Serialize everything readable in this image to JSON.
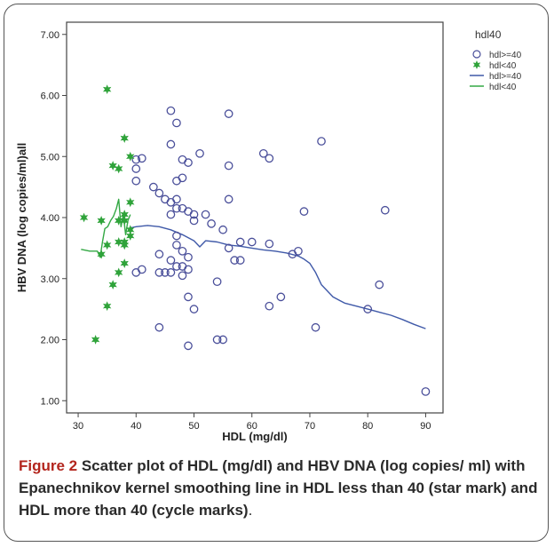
{
  "chart_data": {
    "type": "scatter",
    "xlabel": "HDL (mg/dl)",
    "ylabel": "HBV DNA (log copies/ml)all",
    "xlim": [
      28,
      93
    ],
    "ylim": [
      0.8,
      7.2
    ],
    "xticks": [
      30,
      40,
      50,
      60,
      70,
      80,
      90
    ],
    "yticks": [
      1,
      2,
      3,
      4,
      5,
      6,
      7
    ],
    "xtick_labels": [
      "30",
      "40",
      "50",
      "60",
      "70",
      "80",
      "90"
    ],
    "ytick_labels": [
      "1.00",
      "2.00",
      "3.00",
      "4.00",
      "5.00",
      "6.00",
      "7.00"
    ],
    "grid": false,
    "legend": {
      "title": "hdl40",
      "placement": "top-right outside",
      "entries": [
        "hdl>=40",
        "hdl<40",
        "hdl>=40",
        "hdl<40"
      ]
    },
    "series": [
      {
        "name": "hdl>=40",
        "kind": "points",
        "marker": "circle",
        "color": "#4a4f9a",
        "x": [
          40,
          41,
          40,
          40,
          40,
          41,
          43,
          44,
          44,
          44,
          44,
          45,
          45,
          46,
          46,
          46,
          46,
          46,
          46,
          47,
          47,
          47,
          47,
          47,
          47,
          47,
          48,
          48,
          48,
          48,
          48,
          48,
          49,
          49,
          49,
          49,
          49,
          49,
          50,
          50,
          50,
          51,
          52,
          53,
          54,
          54,
          55,
          55,
          56,
          56,
          56,
          56,
          57,
          58,
          58,
          60,
          62,
          63,
          63,
          63,
          65,
          67,
          68,
          69,
          71,
          72,
          80,
          82,
          83,
          90
        ],
        "y": [
          4.95,
          4.97,
          4.8,
          4.6,
          3.1,
          3.15,
          4.5,
          4.4,
          3.4,
          3.1,
          2.2,
          4.3,
          3.1,
          5.75,
          5.2,
          4.25,
          4.05,
          3.3,
          3.1,
          5.55,
          4.6,
          4.3,
          4.15,
          3.7,
          3.55,
          3.2,
          4.95,
          4.65,
          4.15,
          3.45,
          3.2,
          3.05,
          4.9,
          4.1,
          3.35,
          3.15,
          2.7,
          1.9,
          4.05,
          3.95,
          2.5,
          5.05,
          4.05,
          3.9,
          2.95,
          2.0,
          3.8,
          2.0,
          5.7,
          4.85,
          4.3,
          3.5,
          3.3,
          3.6,
          3.3,
          3.6,
          5.05,
          4.97,
          3.57,
          2.55,
          2.7,
          3.4,
          3.45,
          4.1,
          2.2,
          5.25,
          2.5,
          2.9,
          4.12,
          1.15
        ]
      },
      {
        "name": "hdl<40",
        "kind": "points",
        "marker": "star",
        "color": "#2fa33a",
        "x": [
          31,
          33,
          34,
          34,
          35,
          35,
          35,
          36,
          36,
          37,
          37,
          37,
          37,
          38,
          38,
          38,
          38,
          38,
          38,
          39,
          39,
          39,
          39
        ],
        "y": [
          4.0,
          2.0,
          3.95,
          3.4,
          6.1,
          3.55,
          2.55,
          4.85,
          2.9,
          4.8,
          3.95,
          3.6,
          3.1,
          5.3,
          4.05,
          3.95,
          3.6,
          3.55,
          3.25,
          5.0,
          4.25,
          3.8,
          3.7
        ]
      },
      {
        "name": "hdl>=40",
        "kind": "smooth-line",
        "color": "#3f59a8",
        "x": [
          39,
          40,
          42,
          44,
          46,
          48,
          50,
          51,
          52,
          54,
          56,
          58,
          60,
          62,
          64,
          66,
          68,
          69,
          70,
          71,
          72,
          74,
          76,
          78,
          80,
          82,
          84,
          86,
          88,
          90
        ],
        "y": [
          3.83,
          3.85,
          3.87,
          3.85,
          3.8,
          3.72,
          3.62,
          3.52,
          3.62,
          3.6,
          3.55,
          3.53,
          3.5,
          3.47,
          3.45,
          3.42,
          3.37,
          3.32,
          3.25,
          3.1,
          2.9,
          2.7,
          2.6,
          2.55,
          2.5,
          2.45,
          2.4,
          2.33,
          2.25,
          2.18
        ]
      },
      {
        "name": "hdl<40",
        "kind": "smooth-line",
        "color": "#33a844",
        "x": [
          30.5,
          32,
          33.3,
          33.8,
          34.2,
          34.6,
          35.1,
          35.6,
          36.1,
          36.6,
          37,
          37.4,
          37.8,
          38.2,
          38.6,
          39
        ],
        "y": [
          3.48,
          3.45,
          3.45,
          3.35,
          3.6,
          3.82,
          3.85,
          3.95,
          4.02,
          4.15,
          4.3,
          3.85,
          4.05,
          3.72,
          3.95,
          4.05
        ]
      }
    ]
  },
  "caption": {
    "figure_label": "Figure 2",
    "text": " Scatter plot of HDL (mg/dl) and HBV DNA (log copies/ ml) with Epanechnikov kernel smoothing line in HDL less than 40 (star mark) and HDL more than 40 (cycle marks)",
    "end": "."
  }
}
